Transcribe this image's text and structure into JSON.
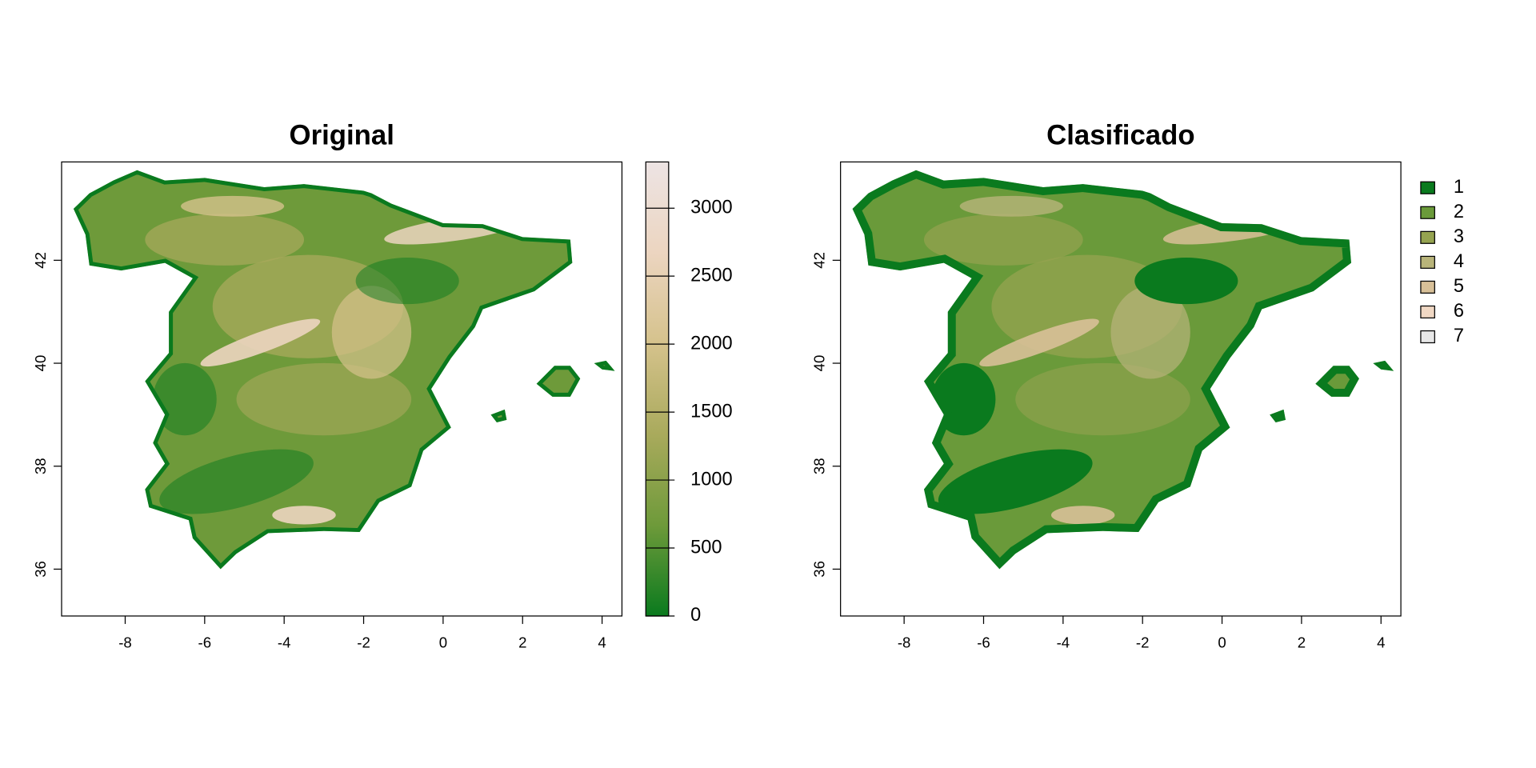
{
  "chart_data": [
    {
      "type": "raster",
      "title": "Original",
      "xlim": [
        -9.6,
        4.5
      ],
      "ylim": [
        35.09,
        43.91
      ],
      "xticks": [
        -8,
        -6,
        -4,
        -2,
        0,
        2,
        4
      ],
      "yticks": [
        36,
        38,
        40,
        42
      ],
      "colorbar": {
        "lim": [
          0,
          3340
        ],
        "ticks": [
          0,
          500,
          1000,
          1500,
          2000,
          2500,
          3000
        ],
        "colors": [
          "#0a7a1e",
          "#6e9a3a",
          "#a9aa5c",
          "#d5c28c",
          "#ecd5c0",
          "#ede4e4"
        ]
      }
    },
    {
      "type": "raster",
      "title": "Clasificado",
      "xlim": [
        -9.6,
        4.5
      ],
      "ylim": [
        35.09,
        43.91
      ],
      "xticks": [
        -8,
        -6,
        -4,
        -2,
        0,
        2,
        4
      ],
      "yticks": [
        36,
        38,
        40,
        42
      ],
      "legend": {
        "labels": [
          "1",
          "2",
          "3",
          "4",
          "5",
          "6",
          "7"
        ],
        "colors": [
          "#0a7a1e",
          "#6a9a3a",
          "#95a350",
          "#b8b47a",
          "#d8c098",
          "#f0d8c4",
          "#e8e8e8"
        ]
      }
    }
  ]
}
